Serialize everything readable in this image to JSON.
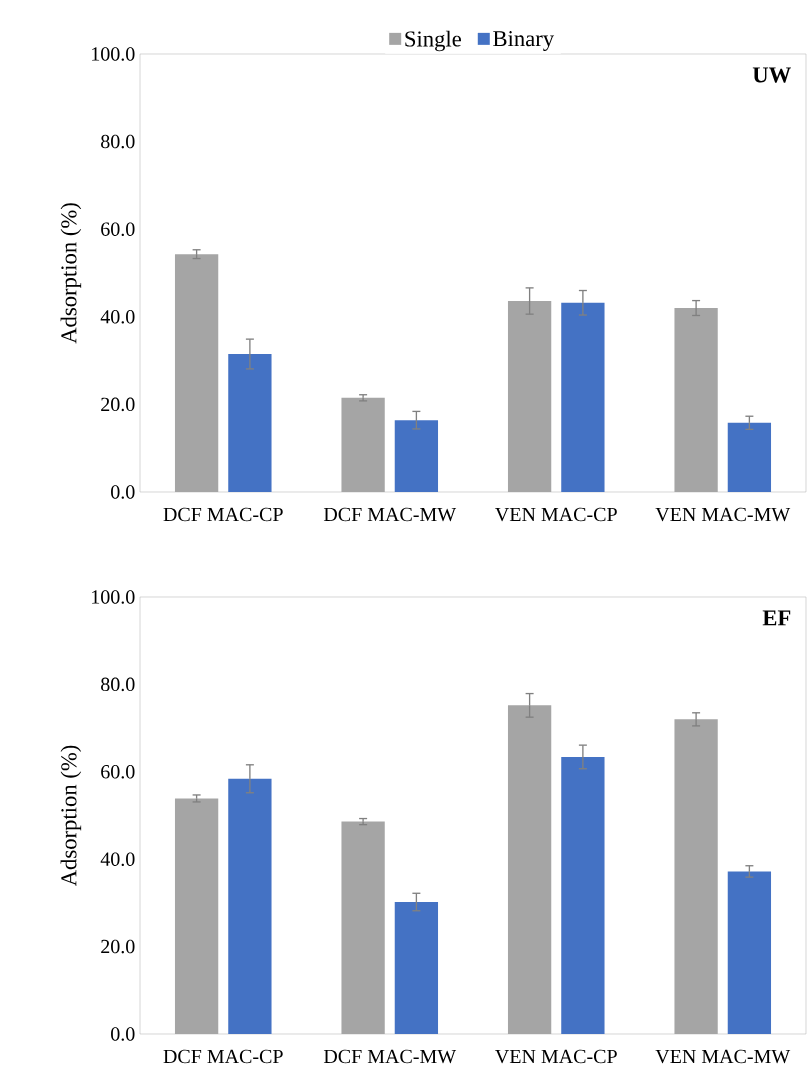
{
  "chart_data": [
    {
      "type": "bar",
      "categories": [
        "DCF MAC-CP",
        "DCF MAC-MW",
        "VEN MAC-CP",
        "VEN MAC-MW"
      ],
      "ylabel": "Adsorption (%)",
      "ylim": [
        0,
        100
      ],
      "yticks": [
        {
          "value": 0,
          "label": "0.0"
        },
        {
          "value": 20,
          "label": "20.0"
        },
        {
          "value": 40,
          "label": "40.0"
        },
        {
          "value": 60,
          "label": "60.0"
        },
        {
          "value": 80,
          "label": "80.0"
        },
        {
          "value": 100,
          "label": "100.0"
        }
      ],
      "series": [
        {
          "name": "Single",
          "color": "#a5a5a5",
          "values": [
            54.3,
            21.5,
            43.6,
            42.0
          ],
          "errors": [
            1.0,
            0.7,
            3.0,
            1.7
          ]
        },
        {
          "name": "Binary",
          "color": "#4472c4",
          "values": [
            31.5,
            16.4,
            43.2,
            15.8
          ],
          "errors": [
            3.4,
            2.0,
            2.8,
            1.5
          ]
        }
      ],
      "annotations": [
        "UW"
      ],
      "legend": "top"
    },
    {
      "type": "bar",
      "categories": [
        "DCF MAC-CP",
        "DCF MAC-MW",
        "VEN MAC-CP",
        "VEN MAC-MW"
      ],
      "ylabel": "Adsorption (%)",
      "ylim": [
        0,
        100
      ],
      "yticks": [
        {
          "value": 0,
          "label": "0.0"
        },
        {
          "value": 20,
          "label": "20.0"
        },
        {
          "value": 40,
          "label": "40.0"
        },
        {
          "value": 60,
          "label": "60.0"
        },
        {
          "value": 80,
          "label": "80.0"
        },
        {
          "value": 100,
          "label": "100.0"
        }
      ],
      "series": [
        {
          "color": "#a5a5a5",
          "values": [
            53.9,
            48.6,
            75.2,
            72.0
          ],
          "errors": [
            0.8,
            0.7,
            2.7,
            1.5
          ]
        },
        {
          "color": "#4472c4",
          "values": [
            58.4,
            30.2,
            63.4,
            37.2
          ],
          "errors": [
            3.2,
            2.0,
            2.7,
            1.3
          ]
        }
      ],
      "annotations": [
        "EF"
      ]
    }
  ]
}
